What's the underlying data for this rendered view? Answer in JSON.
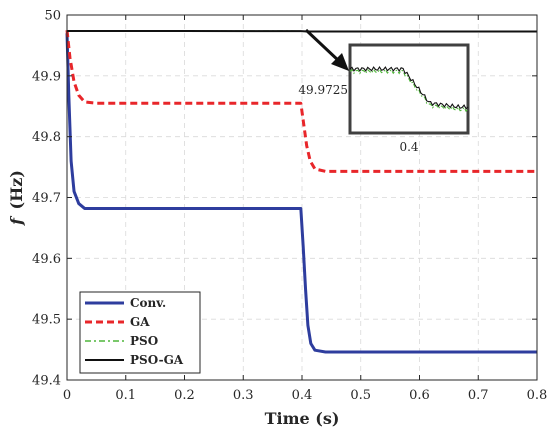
{
  "chart_data": {
    "type": "line",
    "xlabel": "Time (s)",
    "ylabel_italic": "f",
    "ylabel_unit": "(Hz)",
    "xlim": [
      0,
      0.8
    ],
    "ylim": [
      49.4,
      50
    ],
    "xticks": [
      0,
      0.1,
      0.2,
      0.3,
      0.4,
      0.5,
      0.6,
      0.7,
      0.8
    ],
    "xtick_labels": [
      "0",
      "0.1",
      "0.2",
      "0.3",
      "0.4",
      "0.5",
      "0.6",
      "0.7",
      "0.8"
    ],
    "yticks": [
      49.4,
      49.5,
      49.6,
      49.7,
      49.8,
      49.9,
      50
    ],
    "ytick_labels": [
      "49.4",
      "49.5",
      "49.6",
      "49.7",
      "49.8",
      "49.9",
      "50"
    ],
    "grid": true,
    "legend_position": "bottom-left",
    "series": [
      {
        "name": "Conv.",
        "color": "#2e3d9e",
        "style": "solid",
        "points": [
          [
            0,
            49.97
          ],
          [
            0.003,
            49.87
          ],
          [
            0.007,
            49.76
          ],
          [
            0.012,
            49.71
          ],
          [
            0.02,
            49.69
          ],
          [
            0.03,
            49.682
          ],
          [
            0.1,
            49.682
          ],
          [
            0.2,
            49.682
          ],
          [
            0.3,
            49.682
          ],
          [
            0.398,
            49.682
          ],
          [
            0.402,
            49.62
          ],
          [
            0.406,
            49.55
          ],
          [
            0.41,
            49.49
          ],
          [
            0.415,
            49.46
          ],
          [
            0.422,
            49.449
          ],
          [
            0.44,
            49.446
          ],
          [
            0.6,
            49.446
          ],
          [
            0.8,
            49.446
          ]
        ]
      },
      {
        "name": "GA",
        "color": "#e8262a",
        "style": "dashed",
        "points": [
          [
            0,
            49.975
          ],
          [
            0.005,
            49.93
          ],
          [
            0.012,
            49.89
          ],
          [
            0.02,
            49.868
          ],
          [
            0.03,
            49.857
          ],
          [
            0.05,
            49.855
          ],
          [
            0.2,
            49.855
          ],
          [
            0.398,
            49.855
          ],
          [
            0.403,
            49.82
          ],
          [
            0.408,
            49.785
          ],
          [
            0.414,
            49.76
          ],
          [
            0.422,
            49.747
          ],
          [
            0.44,
            49.743
          ],
          [
            0.6,
            49.743
          ],
          [
            0.8,
            49.743
          ]
        ]
      },
      {
        "name": "PSO",
        "color": "#4fb63a",
        "style": "dashdot",
        "points": [
          [
            0,
            49.9735
          ],
          [
            0.2,
            49.9734
          ],
          [
            0.398,
            49.9733
          ],
          [
            0.41,
            49.9727
          ],
          [
            0.44,
            49.9726
          ],
          [
            0.8,
            49.9726
          ]
        ]
      },
      {
        "name": "PSO-GA",
        "color": "#111111",
        "style": "solid",
        "points": [
          [
            0,
            49.9737
          ],
          [
            0.2,
            49.9736
          ],
          [
            0.398,
            49.9735
          ],
          [
            0.41,
            49.9729
          ],
          [
            0.44,
            49.9728
          ],
          [
            0.8,
            49.9728
          ]
        ]
      }
    ],
    "inset": {
      "ytick_label": "49.9725",
      "xtick_label": "0.4",
      "xlim": [
        0.36,
        0.44
      ],
      "ylim": [
        49.9718,
        49.974
      ]
    }
  }
}
